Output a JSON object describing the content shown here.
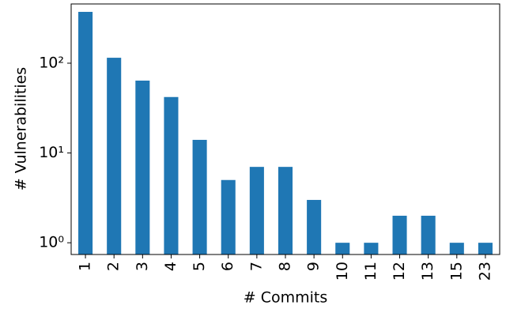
{
  "chart_data": {
    "type": "bar",
    "xlabel": "# Commits",
    "ylabel": "# Vulnerabilities",
    "categories": [
      "1",
      "2",
      "3",
      "4",
      "5",
      "6",
      "7",
      "8",
      "9",
      "10",
      "11",
      "12",
      "13",
      "15",
      "23"
    ],
    "values": [
      373,
      115,
      64,
      42,
      14,
      5,
      7,
      7,
      3,
      1,
      1,
      2,
      2,
      1,
      1
    ],
    "color": "#1f77b4",
    "ylog": true,
    "ylim": [
      0.74,
      457
    ],
    "yticks": [
      {
        "value": 1,
        "label": "10⁰"
      },
      {
        "value": 10,
        "label": "10¹"
      },
      {
        "value": 100,
        "label": "10²"
      }
    ]
  }
}
